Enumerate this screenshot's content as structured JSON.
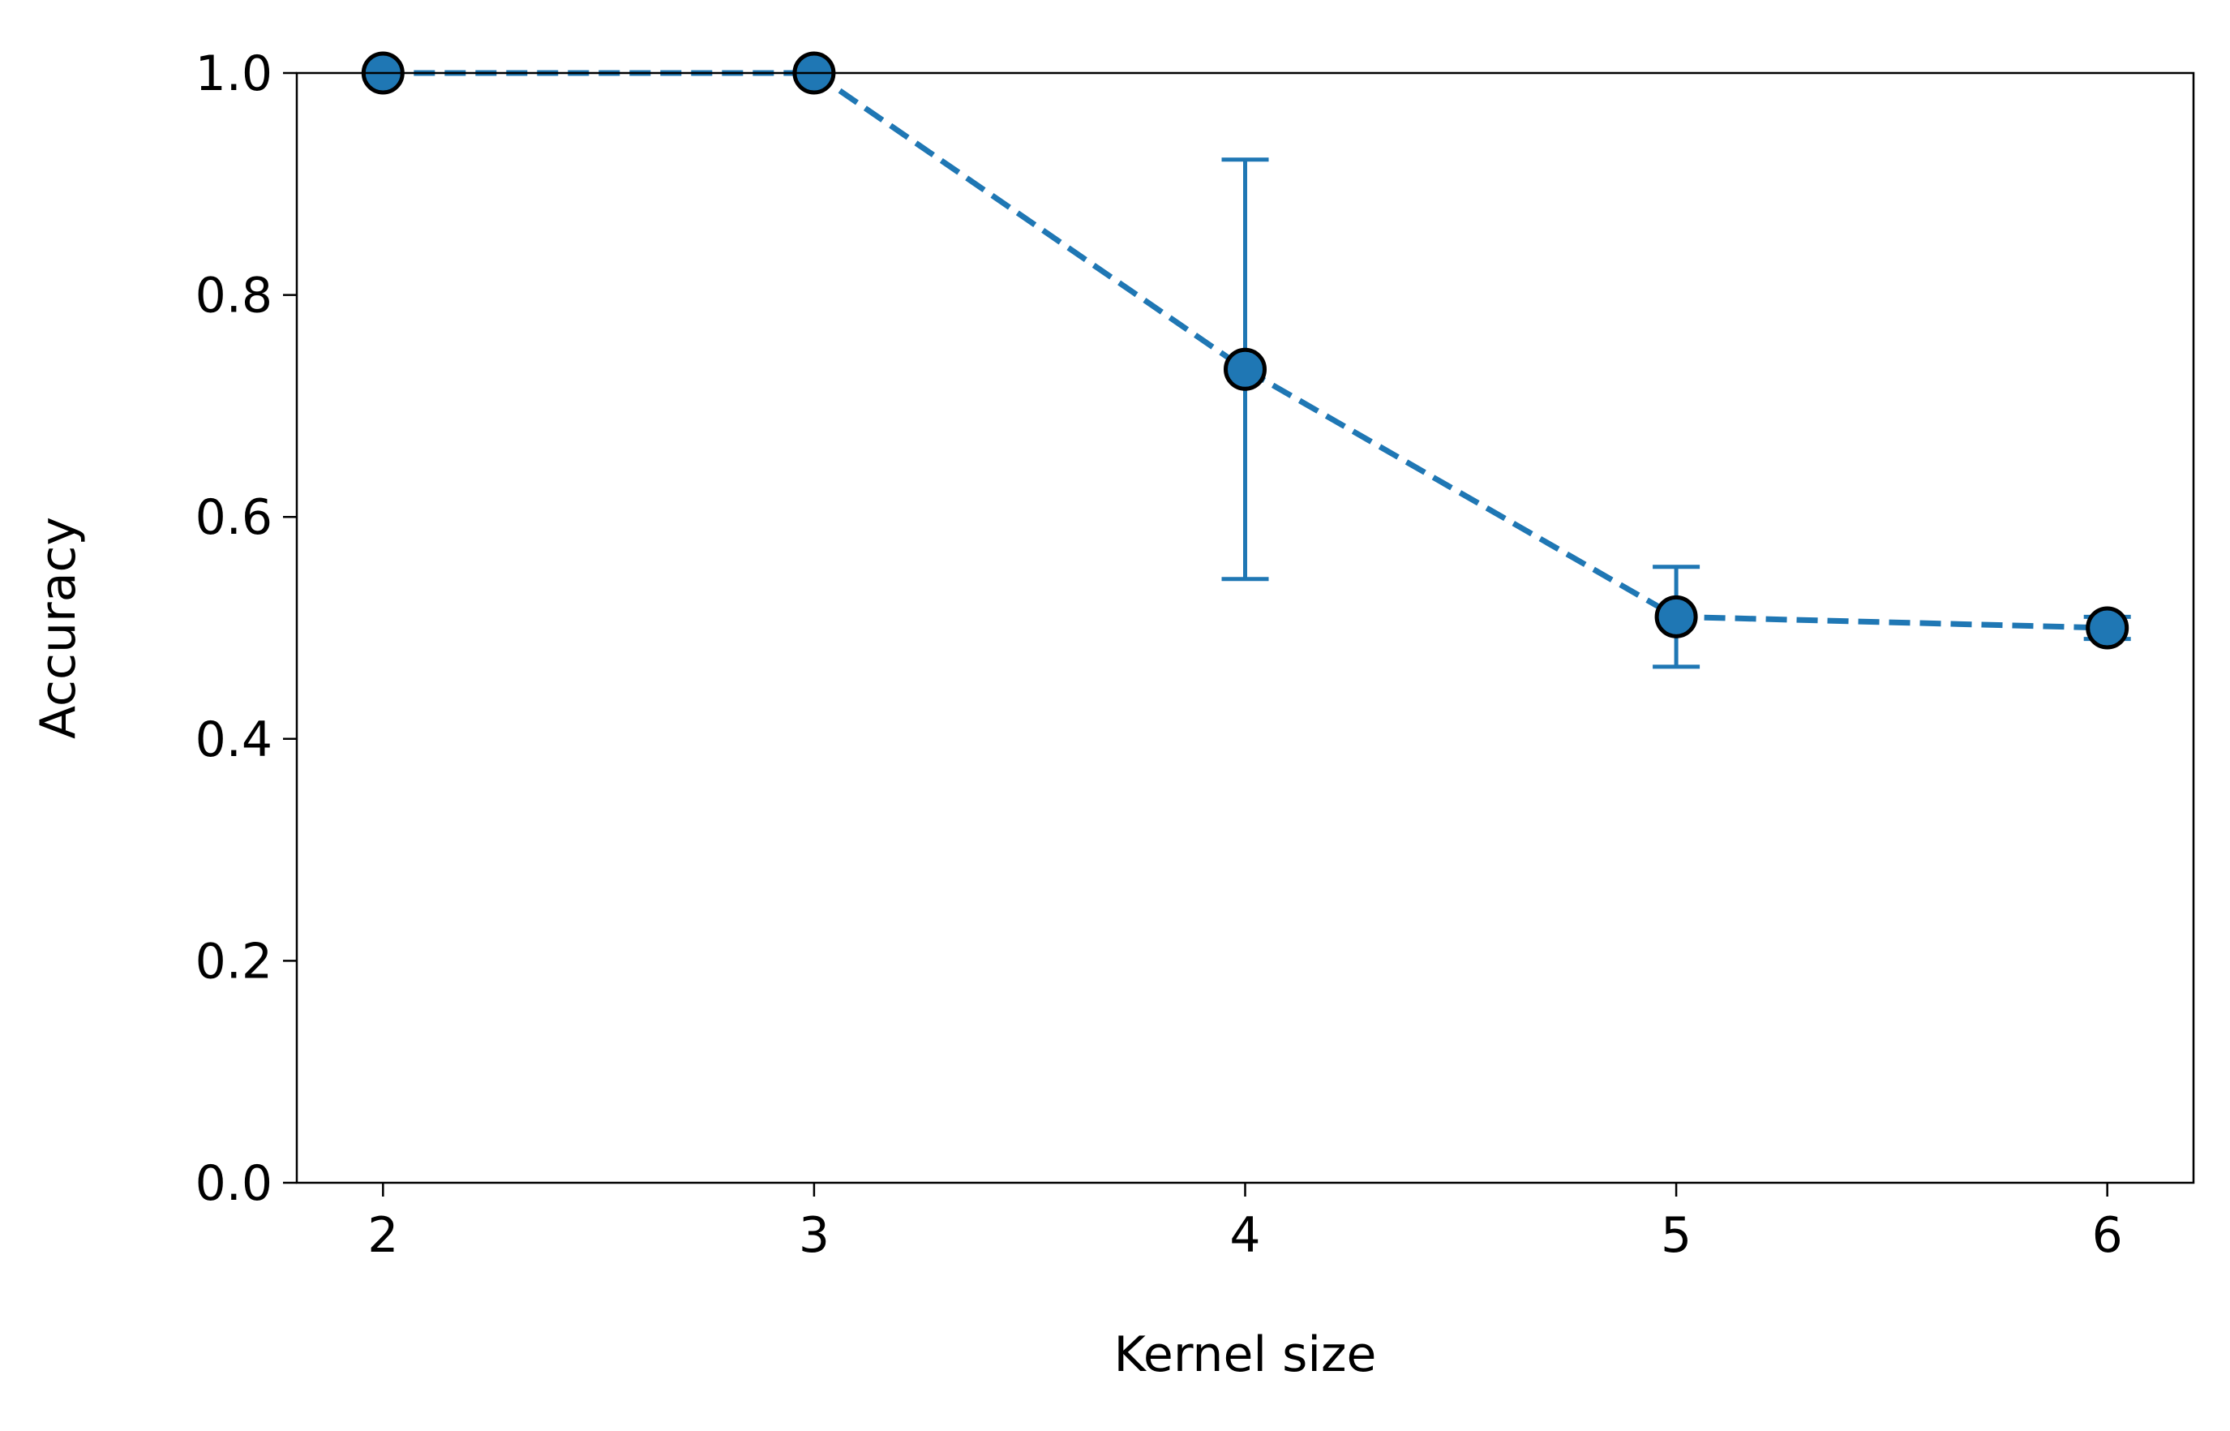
{
  "chart_data": {
    "type": "line",
    "title": "",
    "xlabel": "Kernel size",
    "ylabel": "Accuracy",
    "xlim": [
      1.8,
      6.2
    ],
    "ylim": [
      0.0,
      1.0
    ],
    "x_ticks": [
      2,
      3,
      4,
      5,
      6
    ],
    "y_ticks": [
      0.0,
      0.2,
      0.4,
      0.6,
      0.8,
      1.0
    ],
    "y_tick_labels": [
      "0.0",
      "0.2",
      "0.4",
      "0.6",
      "0.8",
      "1.0"
    ],
    "grid": false,
    "legend": "none",
    "series": [
      {
        "x": [
          2,
          3,
          4,
          5,
          6
        ],
        "y": [
          1.0,
          1.0,
          0.733,
          0.51,
          0.5
        ],
        "yerr": [
          0.0,
          0.0,
          0.189,
          0.045,
          0.01
        ],
        "line_style": "dashed",
        "marker": "circle",
        "color": "#1f77b4"
      }
    ]
  }
}
